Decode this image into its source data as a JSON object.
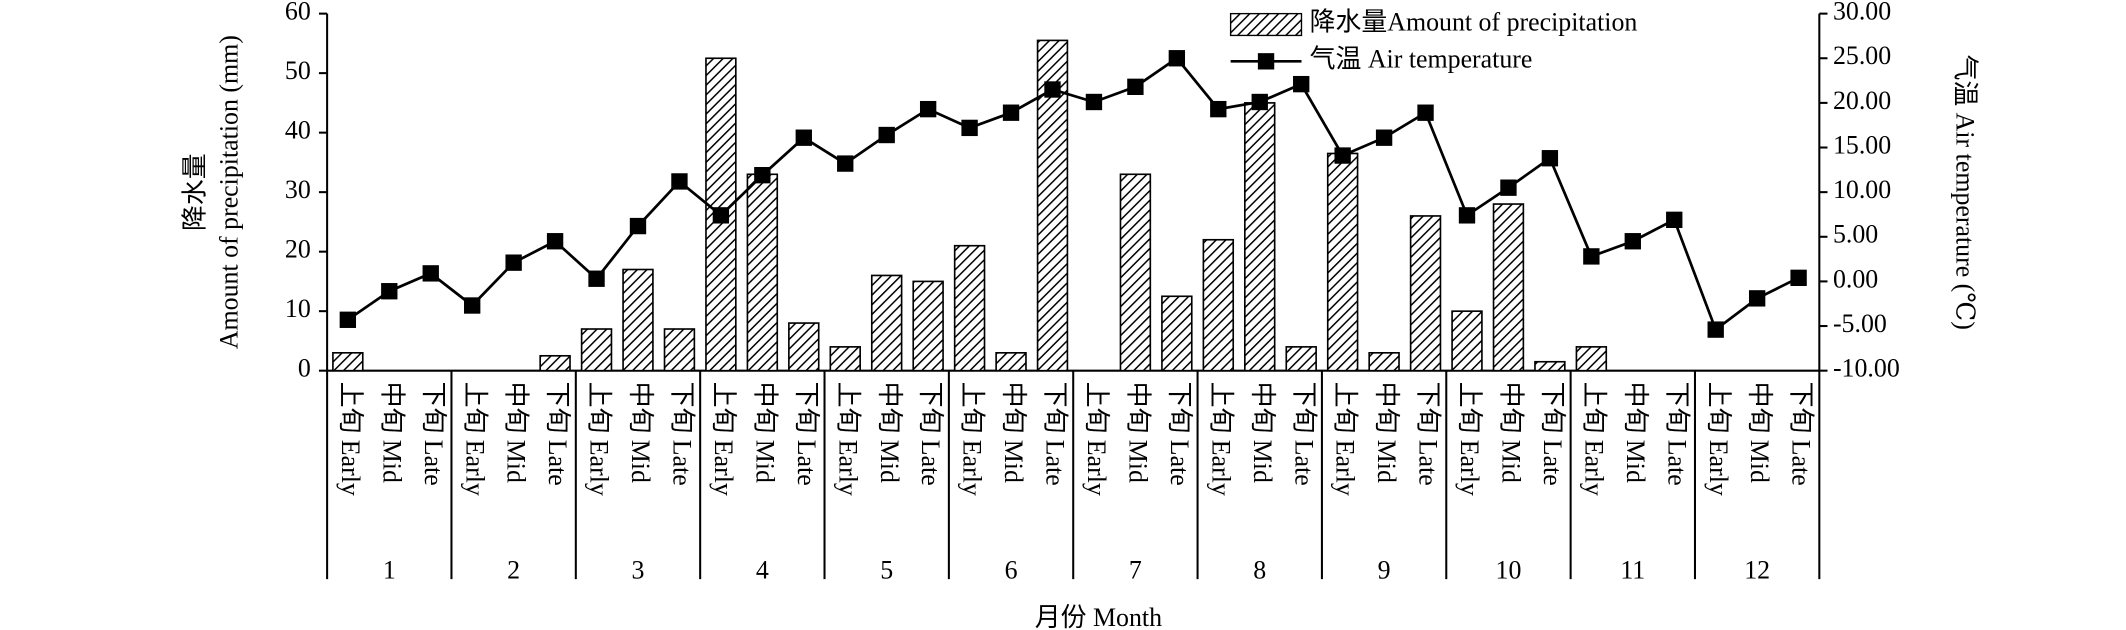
{
  "chart_data": {
    "type": "bar_line",
    "categories": [
      "上旬 Early",
      "中旬 Mid",
      "下旬 Late",
      "上旬 Early",
      "中旬 Mid",
      "下旬 Late",
      "上旬 Early",
      "中旬 Mid",
      "下旬 Late",
      "上旬 Early",
      "中旬 Mid",
      "下旬 Late",
      "上旬 Early",
      "中旬 Mid",
      "下旬 Late",
      "上旬 Early",
      "中旬 Mid",
      "下旬 Late",
      "上旬 Early",
      "中旬 Mid",
      "下旬 Late",
      "上旬 Early",
      "中旬 Mid",
      "下旬 Late",
      "上旬 Early",
      "中旬 Mid",
      "下旬 Late",
      "上旬 Early",
      "中旬 Mid",
      "下旬 Late",
      "上旬 Early",
      "中旬 Mid",
      "下旬 Late",
      "上旬 Early",
      "中旬 Mid",
      "下旬 Late"
    ],
    "months": [
      "1",
      "2",
      "3",
      "4",
      "5",
      "6",
      "7",
      "8",
      "9",
      "10",
      "11",
      "12"
    ],
    "xlabel": "月份 Month",
    "ylabel": [
      "降水量",
      "Amount of precipitation (mm)"
    ],
    "y2label": "气温 Air temperature (℃)",
    "series": [
      {
        "name": "降水量Amount of precipitation",
        "type": "bar",
        "color": "#000000",
        "values": [
          3,
          0,
          0,
          0,
          0,
          2.5,
          7,
          17,
          7,
          52.5,
          33,
          8,
          4,
          16,
          15,
          21,
          3,
          55.5,
          0,
          33,
          12.5,
          22,
          45,
          4,
          36.5,
          3,
          26,
          10,
          28,
          1.5,
          4,
          0,
          0,
          0,
          0,
          0
        ]
      },
      {
        "name": "气温 Air temperature",
        "type": "line",
        "axis": "y2",
        "color": "#000000",
        "values": [
          -4.3,
          -1.1,
          0.9,
          -2.7,
          2.1,
          4.5,
          0.3,
          6.2,
          11.2,
          7.4,
          11.9,
          16.1,
          13.2,
          16.4,
          19.3,
          17.2,
          18.9,
          21.5,
          20.1,
          21.8,
          25.0,
          19.3,
          20.1,
          22.1,
          14.1,
          16.1,
          18.9,
          7.4,
          10.5,
          13.8,
          2.8,
          4.5,
          6.9,
          -5.4,
          -1.9,
          0.4
        ]
      }
    ],
    "ylim": [
      0,
      60
    ],
    "yticks": [
      0,
      10,
      20,
      30,
      40,
      50,
      60
    ],
    "y2lim": [
      -10,
      30
    ],
    "y2ticks": [
      {
        "value": -10,
        "label": "-10.00"
      },
      {
        "value": -5,
        "label": "-5.00"
      },
      {
        "value": 0,
        "label": "0.00"
      },
      {
        "value": 5,
        "label": "5.00"
      },
      {
        "value": 10,
        "label": "10.00"
      },
      {
        "value": 15,
        "label": "15.00"
      },
      {
        "value": 20,
        "label": "20.00"
      },
      {
        "value": 25,
        "label": "25.00"
      },
      {
        "value": 30,
        "label": "30.00"
      }
    ],
    "grid": false,
    "legend": "top-right"
  }
}
